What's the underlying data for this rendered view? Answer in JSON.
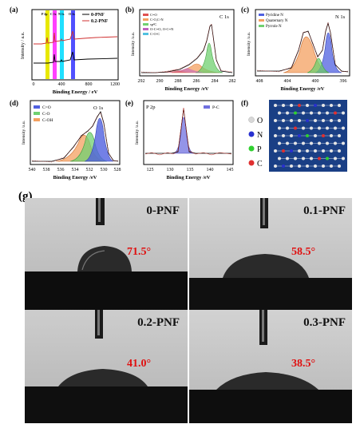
{
  "panels": {
    "a": {
      "label": "(a)",
      "xlabel": "Binding Energy / eV",
      "ylabel": "Intensity / a.u.",
      "xticks": [
        "0",
        "400",
        "800",
        "1200"
      ],
      "legend": [
        "0-PNF",
        "0.2-PNF"
      ],
      "band_labels": [
        "P 2p",
        "C 1s",
        "N 1s",
        "O 1s"
      ],
      "band_colors": [
        "#e8e800",
        "#ff40ff",
        "#20e0ff",
        "#5050ff"
      ]
    },
    "b": {
      "label": "(b)",
      "tag": "C 1s",
      "xlabel": "Binding Energy /eV",
      "ylabel": "Intensity /a.u.",
      "xticks": [
        "292",
        "290",
        "288",
        "286",
        "284",
        "282"
      ],
      "legend": [
        "C=O",
        "C-O,C-N",
        "sp²C",
        "O-C=O, O-C=N",
        "C-O-C"
      ],
      "legend_colors": [
        "#e05050",
        "#f4a060",
        "#70d070",
        "#c060c0",
        "#50c0e0"
      ]
    },
    "c": {
      "label": "(c)",
      "tag": "N 1s",
      "xlabel": "Binding Energy /eV",
      "ylabel": "Intensity /a.u.",
      "xticks": [
        "408",
        "404",
        "400",
        "396"
      ],
      "legend": [
        "Pyridine N",
        "Quaternary N",
        "Pyrrole N"
      ],
      "legend_colors": [
        "#5060e0",
        "#f4a060",
        "#70d070"
      ]
    },
    "d": {
      "label": "(d)",
      "tag": "O 1s",
      "xlabel": "Binding Energy /eV",
      "ylabel": "Intensity /a.u.",
      "xticks": [
        "540",
        "538",
        "536",
        "534",
        "532",
        "530",
        "528"
      ],
      "legend": [
        "C=O",
        "C-O",
        "C-OH"
      ],
      "legend_colors": [
        "#5060e0",
        "#70d070",
        "#f4a060"
      ]
    },
    "e": {
      "label": "(e)",
      "tag": "P 2p",
      "xlabel": "Binding Energy /eV",
      "ylabel": "Intensity /a.u.",
      "xticks": [
        "125",
        "130",
        "135",
        "140",
        "145"
      ],
      "legend": [
        "P-C"
      ],
      "legend_colors": [
        "#7070e0"
      ]
    },
    "f": {
      "label": "(f)",
      "atoms": [
        {
          "symbol": "O",
          "color": "#d8d8d8"
        },
        {
          "symbol": "N",
          "color": "#2830d0"
        },
        {
          "symbol": "P",
          "color": "#30d030"
        },
        {
          "symbol": "C",
          "color": "#e03030"
        }
      ]
    }
  },
  "contact_angles": {
    "label": "(g)",
    "items": [
      {
        "name": "0-PNF",
        "angle": "71.5°"
      },
      {
        "name": "0.1-PNF",
        "angle": "58.5°"
      },
      {
        "name": "0.2-PNF",
        "angle": "41.0°"
      },
      {
        "name": "0.3-PNF",
        "angle": "38.5°"
      }
    ]
  }
}
